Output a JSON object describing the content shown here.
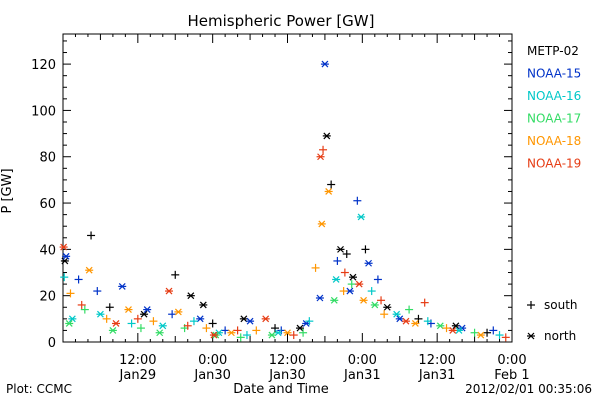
{
  "chart_data": {
    "type": "scatter",
    "title": "Hemispheric Power [GW]",
    "ylabel": "P [GW]",
    "xlabel": "Date and Time",
    "x_unit": "hours since Jan29 00:00",
    "xlim": [
      0,
      72
    ],
    "ylim": [
      0,
      133
    ],
    "yticks": [
      0,
      20,
      40,
      60,
      80,
      100,
      120
    ],
    "xticks": [
      {
        "x": 12,
        "time": "12:00",
        "date": "Jan29"
      },
      {
        "x": 24,
        "time": "0:00",
        "date": "Jan30"
      },
      {
        "x": 36,
        "time": "12:00",
        "date": "Jan30"
      },
      {
        "x": 48,
        "time": "0:00",
        "date": "Jan31"
      },
      {
        "x": 60,
        "time": "12:00",
        "date": "Jan31"
      },
      {
        "x": 72,
        "time": "0:00",
        "date": "Feb 1"
      }
    ],
    "marker_legend": [
      {
        "symbol": "+",
        "label": "south"
      },
      {
        "symbol": "*",
        "label": "north"
      }
    ],
    "series": [
      {
        "name": "METP-02",
        "color": "#000000",
        "points": [
          {
            "x": 0.3,
            "y": 35,
            "m": "*"
          },
          {
            "x": 4.5,
            "y": 46,
            "m": "+"
          },
          {
            "x": 7.5,
            "y": 15,
            "m": "+"
          },
          {
            "x": 13,
            "y": 12,
            "m": "*"
          },
          {
            "x": 18,
            "y": 29,
            "m": "+"
          },
          {
            "x": 20.5,
            "y": 20,
            "m": "*"
          },
          {
            "x": 22.5,
            "y": 16,
            "m": "*"
          },
          {
            "x": 24,
            "y": 8,
            "m": "+"
          },
          {
            "x": 29,
            "y": 10,
            "m": "*"
          },
          {
            "x": 34,
            "y": 6,
            "m": "+"
          },
          {
            "x": 38,
            "y": 6,
            "m": "*"
          },
          {
            "x": 42.3,
            "y": 89,
            "m": "*"
          },
          {
            "x": 43,
            "y": 68,
            "m": "+"
          },
          {
            "x": 44.5,
            "y": 40,
            "m": "*"
          },
          {
            "x": 45.5,
            "y": 38,
            "m": "+"
          },
          {
            "x": 46.5,
            "y": 28,
            "m": "*"
          },
          {
            "x": 48.5,
            "y": 40,
            "m": "+"
          },
          {
            "x": 52,
            "y": 15,
            "m": "*"
          },
          {
            "x": 57,
            "y": 10,
            "m": "+"
          },
          {
            "x": 63,
            "y": 7,
            "m": "*"
          },
          {
            "x": 68,
            "y": 4,
            "m": "+"
          }
        ]
      },
      {
        "name": "NOAA-15",
        "color": "#0032c8",
        "points": [
          {
            "x": 0.5,
            "y": 37,
            "m": "*"
          },
          {
            "x": 2.5,
            "y": 27,
            "m": "+"
          },
          {
            "x": 5.5,
            "y": 22,
            "m": "+"
          },
          {
            "x": 9.5,
            "y": 24,
            "m": "*"
          },
          {
            "x": 13.5,
            "y": 14,
            "m": "*"
          },
          {
            "x": 17.5,
            "y": 12,
            "m": "+"
          },
          {
            "x": 22,
            "y": 10,
            "m": "*"
          },
          {
            "x": 26,
            "y": 5,
            "m": "+"
          },
          {
            "x": 30,
            "y": 9,
            "m": "*"
          },
          {
            "x": 35,
            "y": 5,
            "m": "+"
          },
          {
            "x": 39,
            "y": 8,
            "m": "*"
          },
          {
            "x": 41.2,
            "y": 19,
            "m": "*"
          },
          {
            "x": 42,
            "y": 120,
            "m": "*"
          },
          {
            "x": 44,
            "y": 35,
            "m": "+"
          },
          {
            "x": 46,
            "y": 22,
            "m": "*"
          },
          {
            "x": 47.2,
            "y": 61,
            "m": "+"
          },
          {
            "x": 49,
            "y": 34,
            "m": "*"
          },
          {
            "x": 50.5,
            "y": 27,
            "m": "+"
          },
          {
            "x": 54,
            "y": 10,
            "m": "*"
          },
          {
            "x": 59,
            "y": 8,
            "m": "+"
          },
          {
            "x": 64,
            "y": 6,
            "m": "*"
          },
          {
            "x": 69,
            "y": 5,
            "m": "+"
          }
        ]
      },
      {
        "name": "NOAA-16",
        "color": "#00c8c8",
        "points": [
          {
            "x": 0.2,
            "y": 28,
            "m": "+"
          },
          {
            "x": 1.5,
            "y": 10,
            "m": "*"
          },
          {
            "x": 6,
            "y": 12,
            "m": "*"
          },
          {
            "x": 11,
            "y": 8,
            "m": "+"
          },
          {
            "x": 16,
            "y": 7,
            "m": "*"
          },
          {
            "x": 21,
            "y": 9,
            "m": "+"
          },
          {
            "x": 25,
            "y": 4,
            "m": "*"
          },
          {
            "x": 29.5,
            "y": 3,
            "m": "+"
          },
          {
            "x": 34.5,
            "y": 4,
            "m": "*"
          },
          {
            "x": 39.5,
            "y": 9,
            "m": "+"
          },
          {
            "x": 43.8,
            "y": 27,
            "m": "*"
          },
          {
            "x": 47.8,
            "y": 54,
            "m": "*"
          },
          {
            "x": 49.5,
            "y": 22,
            "m": "+"
          },
          {
            "x": 53.5,
            "y": 12,
            "m": "*"
          },
          {
            "x": 58.5,
            "y": 9,
            "m": "+"
          },
          {
            "x": 63.5,
            "y": 5,
            "m": "*"
          },
          {
            "x": 70,
            "y": 3,
            "m": "+"
          }
        ]
      },
      {
        "name": "NOAA-17",
        "color": "#32dc64",
        "points": [
          {
            "x": 1,
            "y": 8,
            "m": "*"
          },
          {
            "x": 3.5,
            "y": 14,
            "m": "+"
          },
          {
            "x": 8,
            "y": 5,
            "m": "*"
          },
          {
            "x": 12.5,
            "y": 6,
            "m": "+"
          },
          {
            "x": 15.5,
            "y": 4,
            "m": "*"
          },
          {
            "x": 19.5,
            "y": 6,
            "m": "+"
          },
          {
            "x": 24.5,
            "y": 3,
            "m": "*"
          },
          {
            "x": 28.5,
            "y": 2,
            "m": "+"
          },
          {
            "x": 33.5,
            "y": 3,
            "m": "*"
          },
          {
            "x": 38.5,
            "y": 4,
            "m": "+"
          },
          {
            "x": 43.5,
            "y": 18,
            "m": "*"
          },
          {
            "x": 46.3,
            "y": 25,
            "m": "+"
          },
          {
            "x": 50,
            "y": 16,
            "m": "*"
          },
          {
            "x": 55.5,
            "y": 14,
            "m": "+"
          },
          {
            "x": 60.5,
            "y": 7,
            "m": "*"
          },
          {
            "x": 66,
            "y": 4,
            "m": "+"
          }
        ]
      },
      {
        "name": "NOAA-18",
        "color": "#ff9600",
        "points": [
          {
            "x": 1.2,
            "y": 21,
            "m": "+"
          },
          {
            "x": 4.2,
            "y": 31,
            "m": "*"
          },
          {
            "x": 7,
            "y": 10,
            "m": "+"
          },
          {
            "x": 10.5,
            "y": 14,
            "m": "*"
          },
          {
            "x": 14.5,
            "y": 9,
            "m": "+"
          },
          {
            "x": 18.5,
            "y": 13,
            "m": "*"
          },
          {
            "x": 23,
            "y": 6,
            "m": "+"
          },
          {
            "x": 27,
            "y": 4,
            "m": "*"
          },
          {
            "x": 31,
            "y": 5,
            "m": "+"
          },
          {
            "x": 36,
            "y": 4,
            "m": "*"
          },
          {
            "x": 40.5,
            "y": 32,
            "m": "+"
          },
          {
            "x": 41.5,
            "y": 51,
            "m": "*"
          },
          {
            "x": 42.6,
            "y": 65,
            "m": "*"
          },
          {
            "x": 45,
            "y": 22,
            "m": "+"
          },
          {
            "x": 48.2,
            "y": 18,
            "m": "*"
          },
          {
            "x": 51.5,
            "y": 12,
            "m": "+"
          },
          {
            "x": 56.5,
            "y": 8,
            "m": "*"
          },
          {
            "x": 61.5,
            "y": 6,
            "m": "+"
          },
          {
            "x": 67,
            "y": 3,
            "m": "*"
          }
        ]
      },
      {
        "name": "NOAA-19",
        "color": "#e63c14",
        "points": [
          {
            "x": 0.1,
            "y": 41,
            "m": "*"
          },
          {
            "x": 3,
            "y": 16,
            "m": "+"
          },
          {
            "x": 8.5,
            "y": 8,
            "m": "*"
          },
          {
            "x": 12,
            "y": 10,
            "m": "+"
          },
          {
            "x": 17,
            "y": 22,
            "m": "*"
          },
          {
            "x": 20,
            "y": 7,
            "m": "+"
          },
          {
            "x": 24.2,
            "y": 3,
            "m": "*"
          },
          {
            "x": 28,
            "y": 5,
            "m": "+"
          },
          {
            "x": 32.5,
            "y": 10,
            "m": "*"
          },
          {
            "x": 37,
            "y": 3,
            "m": "+"
          },
          {
            "x": 41.3,
            "y": 80,
            "m": "*"
          },
          {
            "x": 41.7,
            "y": 83,
            "m": "+"
          },
          {
            "x": 45.2,
            "y": 30,
            "m": "+"
          },
          {
            "x": 47.5,
            "y": 25,
            "m": "*"
          },
          {
            "x": 51,
            "y": 18,
            "m": "+"
          },
          {
            "x": 55,
            "y": 9,
            "m": "*"
          },
          {
            "x": 58,
            "y": 17,
            "m": "+"
          },
          {
            "x": 62.5,
            "y": 5,
            "m": "*"
          },
          {
            "x": 71,
            "y": 2,
            "m": "+"
          }
        ]
      }
    ]
  },
  "footer": {
    "left": "Plot: CCMC",
    "right": "2012/02/01 00:35:06"
  }
}
